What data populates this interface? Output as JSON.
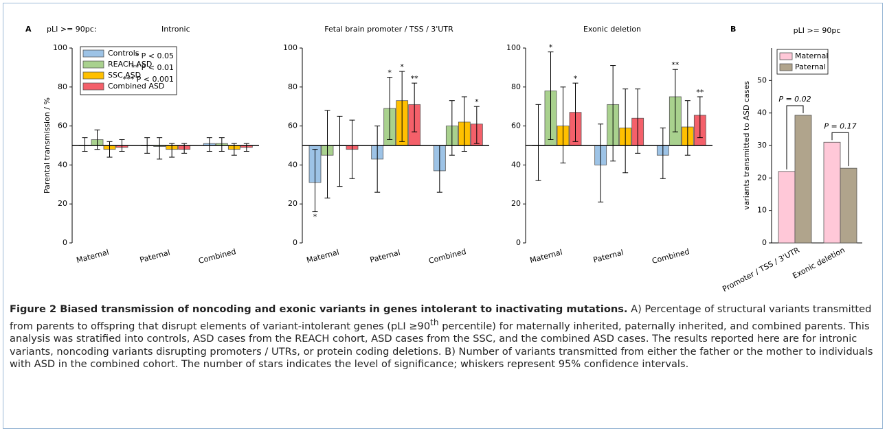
{
  "chart_data": [
    {
      "type": "bar",
      "panel": "A",
      "subset_label": "pLI >= 90pc:",
      "title": "Intronic",
      "y_label": "Parental transmission / %",
      "categories": [
        "Maternal",
        "Paternal",
        "Combined"
      ],
      "base": 50,
      "ylim": [
        0,
        100
      ],
      "yticks": [
        0,
        20,
        40,
        60,
        80,
        100
      ],
      "legend_notes": [
        "*  P < 0.05",
        "** P < 0.01",
        "*** P < 0.001"
      ],
      "series": [
        {
          "name": "Controls",
          "color": "#9dc3e6",
          "values": [
            50,
            50,
            51
          ],
          "ci_low": [
            47,
            46,
            47
          ],
          "ci_high": [
            54,
            54,
            54
          ],
          "significance": [
            null,
            null,
            null
          ]
        },
        {
          "name": "REACH ASD",
          "color": "#a9d18e",
          "values": [
            53,
            49.5,
            51
          ],
          "ci_low": [
            48,
            43,
            47
          ],
          "ci_high": [
            58,
            54,
            54
          ],
          "significance": [
            null,
            null,
            null
          ]
        },
        {
          "name": "SSC ASD",
          "color": "#ffc000",
          "values": [
            48,
            48,
            48
          ],
          "ci_low": [
            44,
            44,
            45
          ],
          "ci_high": [
            52,
            51,
            51
          ],
          "significance": [
            null,
            null,
            null
          ]
        },
        {
          "name": "Combined ASD",
          "color": "#f4606a",
          "values": [
            49,
            48,
            49
          ],
          "ci_low": [
            47,
            46,
            47
          ],
          "ci_high": [
            53,
            51,
            51
          ],
          "significance": [
            null,
            null,
            null
          ]
        }
      ]
    },
    {
      "type": "bar",
      "title": "Fetal brain promoter / TSS / 3'UTR",
      "categories": [
        "Maternal",
        "Paternal",
        "Combined"
      ],
      "base": 50,
      "ylim": [
        0,
        100
      ],
      "yticks": [
        0,
        20,
        40,
        60,
        80,
        100
      ],
      "series": [
        {
          "color": "#9dc3e6",
          "values": [
            31,
            43,
            37
          ],
          "ci_low": [
            16,
            26,
            26
          ],
          "ci_high": [
            48,
            60,
            50
          ],
          "significance": [
            "*",
            null,
            null
          ]
        },
        {
          "color": "#a9d18e",
          "values": [
            45,
            69,
            60
          ],
          "ci_low": [
            23,
            53,
            45
          ],
          "ci_high": [
            68,
            85,
            73
          ],
          "significance": [
            null,
            "*",
            null
          ]
        },
        {
          "color": "#ffc000",
          "values": [
            50,
            73,
            62
          ],
          "ci_low": [
            29,
            52,
            47
          ],
          "ci_high": [
            65,
            88,
            75
          ],
          "significance": [
            null,
            "*",
            null
          ]
        },
        {
          "color": "#f4606a",
          "values": [
            48,
            71,
            61
          ],
          "ci_low": [
            33,
            57,
            51
          ],
          "ci_high": [
            63,
            82,
            70
          ],
          "significance": [
            null,
            "**",
            "*"
          ]
        }
      ]
    },
    {
      "type": "bar",
      "title": "Exonic deletion",
      "categories": [
        "Maternal",
        "Paternal",
        "Combined"
      ],
      "base": 50,
      "ylim": [
        0,
        100
      ],
      "yticks": [
        0,
        20,
        40,
        60,
        80,
        100
      ],
      "series": [
        {
          "color": "#9dc3e6",
          "values": [
            50,
            40,
            45
          ],
          "ci_low": [
            32,
            21,
            33
          ],
          "ci_high": [
            71,
            61,
            59
          ],
          "significance": [
            null,
            null,
            null
          ]
        },
        {
          "color": "#a9d18e",
          "values": [
            78,
            71,
            75
          ],
          "ci_low": [
            53,
            42,
            57
          ],
          "ci_high": [
            98,
            91,
            89
          ],
          "significance": [
            "*",
            null,
            "**"
          ]
        },
        {
          "color": "#ffc000",
          "values": [
            60,
            59,
            59.5
          ],
          "ci_low": [
            41,
            36,
            45
          ],
          "ci_high": [
            80,
            79,
            73
          ],
          "significance": [
            null,
            null,
            null
          ]
        },
        {
          "color": "#f4606a",
          "values": [
            67,
            64,
            65.5
          ],
          "ci_low": [
            52,
            46,
            54
          ],
          "ci_high": [
            82,
            79,
            75
          ],
          "significance": [
            "*",
            null,
            "**"
          ]
        }
      ]
    },
    {
      "type": "grouped",
      "panel": "B",
      "title": "pLI >= 90pc",
      "y_label": "variants transmitted to ASD cases",
      "categories": [
        "Promoter / TSS / 3'UTR",
        "Exonic deletion"
      ],
      "ylim": [
        0,
        60
      ],
      "yticks": [
        0,
        10,
        20,
        30,
        40,
        50
      ],
      "annotations": [
        "P = 0.02",
        "P = 0.17"
      ],
      "series": [
        {
          "name": "Maternal",
          "color": "#ffc8d8",
          "values": [
            22,
            31
          ]
        },
        {
          "name": "Paternal",
          "color": "#b0a48c",
          "values": [
            39.3,
            23
          ]
        }
      ]
    }
  ],
  "caption": {
    "title": "Figure 2 Biased transmission of noncoding and exonic variants in genes intolerant to inactivating mutations.",
    "text_parts": [
      " A) Percentage of structural variants transmitted from parents to offspring that disrupt elements of variant-intolerant genes (pLI ≥90",
      "th",
      " percentile) for maternally inherited, paternally inherited, and combined parents. This analysis was stratified into controls, ASD cases from the REACH cohort, ASD cases from the SSC, and the combined ASD cases. The results reported here are for intronic variants, noncoding variants disrupting promoters / UTRs, or protein coding deletions. B) Number of variants transmitted from either the father or the mother to individuals with ASD in the combined cohort. The number of stars indicates the level of significance; whiskers represent 95% confidence intervals."
    ]
  }
}
